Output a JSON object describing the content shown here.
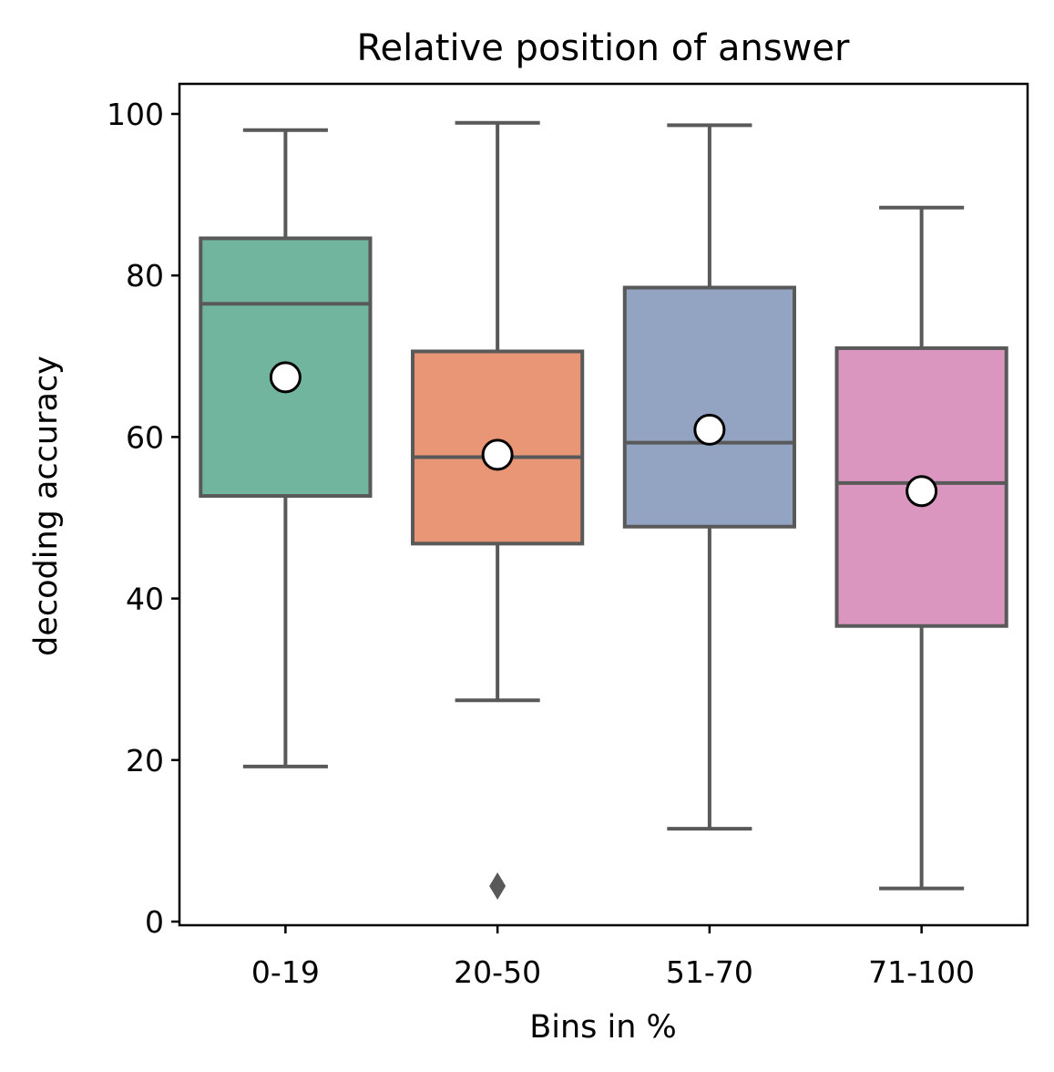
{
  "chart_data": {
    "type": "box",
    "title": "Relative position of answer",
    "xlabel": "Bins in %",
    "ylabel": "decoding accuracy",
    "ylim": [
      -0.5,
      104
    ],
    "yticks": [
      0,
      20,
      40,
      60,
      80,
      100
    ],
    "ytick_labels": [
      "0",
      "20",
      "40",
      "60",
      "80",
      "100"
    ],
    "grid": false,
    "line_color": "#595959",
    "mean_marker_color": "#ffffff",
    "categories": [
      "0-19",
      "20-50",
      "51-70",
      "71-100"
    ],
    "boxes": [
      {
        "label": "0-19",
        "color": "#72b59f",
        "whisker_low": 19.2,
        "q1": 52.7,
        "median": 76.5,
        "q3": 84.6,
        "whisker_high": 98.0,
        "mean": 67.4,
        "outliers": []
      },
      {
        "label": "20-50",
        "color": "#e89676",
        "whisker_low": 27.4,
        "q1": 46.8,
        "median": 57.5,
        "q3": 70.6,
        "whisker_high": 98.9,
        "mean": 57.8,
        "outliers": [
          4.4
        ]
      },
      {
        "label": "51-70",
        "color": "#93a3c2",
        "whisker_low": 11.5,
        "q1": 48.9,
        "median": 59.3,
        "q3": 78.5,
        "whisker_high": 98.6,
        "mean": 60.9,
        "outliers": []
      },
      {
        "label": "71-100",
        "color": "#db96c0",
        "whisker_low": 4.1,
        "q1": 36.6,
        "median": 54.3,
        "q3": 71.0,
        "whisker_high": 88.4,
        "mean": 53.3,
        "outliers": []
      }
    ]
  }
}
